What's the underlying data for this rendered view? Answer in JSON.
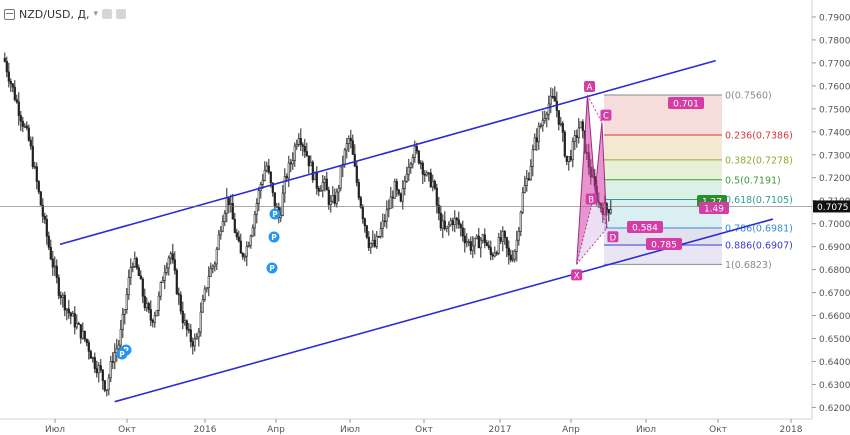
{
  "header": {
    "symbol": "NZD/USD, Д,",
    "dropdown_glyph": "▾"
  },
  "colors": {
    "candle": "#222222",
    "channel": "#2a2ad8",
    "pattern_fill": "#d63ca6",
    "pattern_fill_light": "#c9a0e0",
    "badge": "#d63ca6",
    "signal": "#2196f3",
    "green_badge": "#2e8b2e",
    "price_tag": "#111111"
  },
  "chart_data": {
    "type": "candlestick",
    "instrument": "NZD/USD",
    "timeframe": "Д",
    "x_labels": [
      "Июл",
      "Окт",
      "2016",
      "Апр",
      "Июл",
      "Окт",
      "2017",
      "Апр",
      "Июл",
      "Окт",
      "2018"
    ],
    "y_ticks": [
      0.79,
      0.78,
      0.77,
      0.76,
      0.75,
      0.74,
      0.73,
      0.72,
      0.71,
      0.7,
      0.69,
      0.68,
      0.67,
      0.66,
      0.65,
      0.64,
      0.63,
      0.62
    ],
    "y_tick_labels": [
      "0.7900",
      "0.7800",
      "0.7700",
      "0.7600",
      "0.7500",
      "0.7400",
      "0.7300",
      "0.7200",
      "0.7100",
      "0.7000",
      "0.6900",
      "0.6800",
      "0.6700",
      "0.6600",
      "0.6500",
      "0.6400",
      "0.6300",
      "0.6200"
    ],
    "ylim": [
      0.6167,
      0.7939
    ],
    "last_price": 0.7075,
    "last_price_label": "0.7075",
    "price_path": [
      [
        0.0,
        0.772
      ],
      [
        0.4,
        0.762
      ],
      [
        1.0,
        0.748
      ],
      [
        1.6,
        0.735
      ],
      [
        2.2,
        0.712
      ],
      [
        2.8,
        0.69
      ],
      [
        3.4,
        0.672
      ],
      [
        4.0,
        0.662
      ],
      [
        4.6,
        0.655
      ],
      [
        5.2,
        0.648
      ],
      [
        5.6,
        0.64
      ],
      [
        6.0,
        0.636
      ],
      [
        6.4,
        0.628
      ],
      [
        6.8,
        0.642
      ],
      [
        7.2,
        0.648
      ],
      [
        7.6,
        0.665
      ],
      [
        8.0,
        0.685
      ],
      [
        8.4,
        0.678
      ],
      [
        8.8,
        0.665
      ],
      [
        9.2,
        0.658
      ],
      [
        9.6,
        0.664
      ],
      [
        10.0,
        0.68
      ],
      [
        10.4,
        0.688
      ],
      [
        10.8,
        0.672
      ],
      [
        11.2,
        0.658
      ],
      [
        11.6,
        0.65
      ],
      [
        12.0,
        0.648
      ],
      [
        12.4,
        0.664
      ],
      [
        12.8,
        0.678
      ],
      [
        13.2,
        0.684
      ],
      [
        13.6,
        0.702
      ],
      [
        14.0,
        0.712
      ],
      [
        14.4,
        0.698
      ],
      [
        14.8,
        0.686
      ],
      [
        15.2,
        0.69
      ],
      [
        15.6,
        0.702
      ],
      [
        16.0,
        0.716
      ],
      [
        16.4,
        0.726
      ],
      [
        16.8,
        0.712
      ],
      [
        17.2,
        0.702
      ],
      [
        17.6,
        0.72
      ],
      [
        18.0,
        0.728
      ],
      [
        18.4,
        0.74
      ],
      [
        18.8,
        0.733
      ],
      [
        19.2,
        0.724
      ],
      [
        19.6,
        0.716
      ],
      [
        20.0,
        0.718
      ],
      [
        20.4,
        0.708
      ],
      [
        20.8,
        0.712
      ],
      [
        21.2,
        0.728
      ],
      [
        21.6,
        0.738
      ],
      [
        22.0,
        0.72
      ],
      [
        22.4,
        0.705
      ],
      [
        22.8,
        0.692
      ],
      [
        23.2,
        0.69
      ],
      [
        23.6,
        0.698
      ],
      [
        24.0,
        0.706
      ],
      [
        24.4,
        0.716
      ],
      [
        24.8,
        0.708
      ],
      [
        25.2,
        0.725
      ],
      [
        25.6,
        0.732
      ],
      [
        26.0,
        0.728
      ],
      [
        26.4,
        0.72
      ],
      [
        26.8,
        0.718
      ],
      [
        27.2,
        0.702
      ],
      [
        27.6,
        0.696
      ],
      [
        28.0,
        0.702
      ],
      [
        28.4,
        0.7
      ],
      [
        28.8,
        0.694
      ],
      [
        29.2,
        0.69
      ],
      [
        29.6,
        0.692
      ],
      [
        30.0,
        0.694
      ],
      [
        30.4,
        0.686
      ],
      [
        30.8,
        0.69
      ],
      [
        31.2,
        0.694
      ],
      [
        31.6,
        0.684
      ],
      [
        32.0,
        0.69
      ],
      [
        32.4,
        0.712
      ],
      [
        32.8,
        0.722
      ],
      [
        33.2,
        0.736
      ],
      [
        33.6,
        0.744
      ],
      [
        34.0,
        0.752
      ],
      [
        34.4,
        0.754
      ],
      [
        34.8,
        0.742
      ],
      [
        35.2,
        0.726
      ],
      [
        35.6,
        0.734
      ],
      [
        36.0,
        0.744
      ],
      [
        36.4,
        0.73
      ],
      [
        36.8,
        0.718
      ],
      [
        37.2,
        0.708
      ],
      [
        37.6,
        0.706
      ],
      [
        38.0,
        0.708
      ]
    ],
    "channel": {
      "upper": [
        [
          0.694,
          0.691
        ],
        [
          0.842,
          0.771
        ]
      ],
      "lower": [
        [
          0.135,
          0.6225
        ],
        [
          0.907,
          0.702
        ]
      ]
    },
    "fibonacci": {
      "levels": [
        {
          "ratio": "0",
          "value": 0.756,
          "label": "0(0.7560)",
          "color": "#8a8a8a",
          "band": "#f6d6d6"
        },
        {
          "ratio": "0.236",
          "value": 0.7386,
          "label": "0.236(0.7386)",
          "color": "#d43a3a",
          "band": "#f1e4c8"
        },
        {
          "ratio": "0.382",
          "value": 0.7278,
          "label": "0.382(0.7278)",
          "color": "#8ab030",
          "band": "#e4efd0"
        },
        {
          "ratio": "0.5",
          "value": 0.7191,
          "label": "0.5(0.7191)",
          "color": "#3a9a3a",
          "band": "#d6efe0"
        },
        {
          "ratio": "0.618",
          "value": 0.7105,
          "label": "0.618(0.7105)",
          "color": "#2e9e8e",
          "band": "#d2ecf0"
        },
        {
          "ratio": "0.786",
          "value": 0.6981,
          "label": "0.786(0.6981)",
          "color": "#3a8ad4",
          "band": "#dcdcec"
        },
        {
          "ratio": "0.886",
          "value": 0.6907,
          "label": "0.886(0.6907)",
          "color": "#3a3ad8",
          "band": "#e6e0f0"
        },
        {
          "ratio": "1",
          "value": 0.6823,
          "label": "1(0.6823)",
          "color": "#8a8a8a",
          "band": ""
        }
      ]
    },
    "harmonic_points": [
      {
        "name": "X",
        "x": 35.84,
        "y": 0.6823
      },
      {
        "name": "A",
        "x": 36.52,
        "y": 0.756
      },
      {
        "name": "B",
        "x": 37.0,
        "y": 0.714
      },
      {
        "name": "C",
        "x": 37.42,
        "y": 0.744
      },
      {
        "name": "D",
        "x": 37.73,
        "y": 0.698
      }
    ],
    "ratio_labels": [
      "0.701",
      "1.27",
      "1.49",
      "0.584",
      "0.785"
    ],
    "signal_markers": [
      "P",
      "P",
      "P",
      "P",
      "P"
    ]
  }
}
